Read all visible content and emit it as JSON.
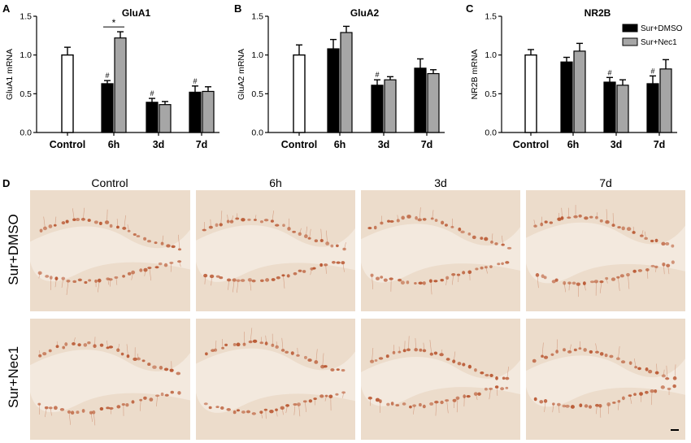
{
  "panels": {
    "a": "A",
    "b": "B",
    "c": "C",
    "d": "D"
  },
  "chart_data": [
    {
      "type": "bar",
      "title": "GluA1",
      "ylabel": "GluA1 mRNA",
      "ylim": [
        0,
        1.5
      ],
      "yticks": [
        "0.0",
        "0.5",
        "1.0",
        "1.5"
      ],
      "categories": [
        "Control",
        "6h",
        "3d",
        "7d"
      ],
      "control": {
        "value": 1.0,
        "err": 0.1
      },
      "series": [
        {
          "name": "Sur+DMSO",
          "values": [
            null,
            0.63,
            0.39,
            0.52
          ],
          "errors": [
            null,
            0.04,
            0.05,
            0.08
          ]
        },
        {
          "name": "Sur+Nec1",
          "values": [
            null,
            1.22,
            0.36,
            0.53
          ],
          "errors": [
            null,
            0.08,
            0.04,
            0.06
          ]
        }
      ],
      "annotations": {
        "hash": "#",
        "star": "*",
        "hash_on": [
          1,
          2,
          3
        ],
        "star_on": 1
      },
      "grid": false
    },
    {
      "type": "bar",
      "title": "GluA2",
      "ylabel": "GluA2 mRNA",
      "ylim": [
        0,
        1.5
      ],
      "yticks": [
        "0.0",
        "0.5",
        "1.0",
        "1.5"
      ],
      "categories": [
        "Control",
        "6h",
        "3d",
        "7d"
      ],
      "control": {
        "value": 1.0,
        "err": 0.13
      },
      "series": [
        {
          "name": "Sur+DMSO",
          "values": [
            null,
            1.08,
            0.61,
            0.83
          ],
          "errors": [
            null,
            0.12,
            0.07,
            0.12
          ]
        },
        {
          "name": "Sur+Nec1",
          "values": [
            null,
            1.29,
            0.68,
            0.76
          ],
          "errors": [
            null,
            0.08,
            0.04,
            0.05
          ]
        }
      ],
      "annotations": {
        "hash": "#",
        "hash_on": [
          2
        ]
      },
      "grid": false
    },
    {
      "type": "bar",
      "title": "NR2B",
      "ylabel": "NR2B mRNA",
      "ylim": [
        0,
        1.5
      ],
      "yticks": [
        "0.0",
        "0.5",
        "1.0",
        "1.5"
      ],
      "categories": [
        "Control",
        "6h",
        "3d",
        "7d"
      ],
      "control": {
        "value": 1.0,
        "err": 0.07
      },
      "series": [
        {
          "name": "Sur+DMSO",
          "values": [
            null,
            0.91,
            0.65,
            0.63
          ],
          "errors": [
            null,
            0.06,
            0.06,
            0.1
          ]
        },
        {
          "name": "Sur+Nec1",
          "values": [
            null,
            1.05,
            0.61,
            0.82
          ],
          "errors": [
            null,
            0.1,
            0.07,
            0.12
          ]
        }
      ],
      "annotations": {
        "hash": "#",
        "hash_on": [
          2,
          3
        ]
      },
      "legend": {
        "position": "top-right",
        "entries": [
          "Sur+DMSO",
          "Sur+Nec1"
        ]
      },
      "grid": false
    }
  ],
  "colors": {
    "dmso": "#000000",
    "nec1": "#a6a6a6",
    "control": "#ffffff",
    "tissue": "#ecdccb",
    "stain": "#b8552f"
  },
  "micrographs": {
    "columns": [
      "Control",
      "6h",
      "3d",
      "7d"
    ],
    "rows": [
      "Sur+DMSO",
      "Sur+Nec1"
    ]
  }
}
